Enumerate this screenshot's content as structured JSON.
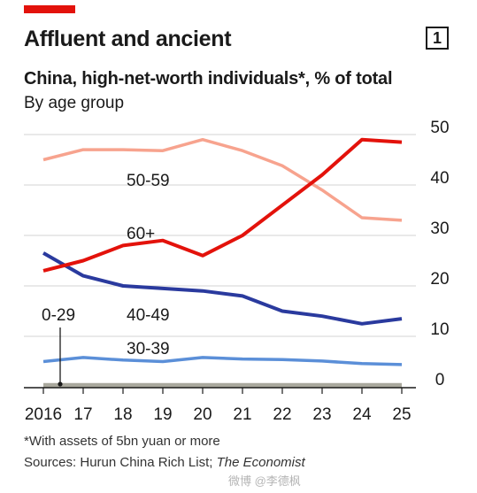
{
  "header": {
    "title": "Affluent and ancient",
    "chart_number": "1",
    "subtitle": "China, high-net-worth individuals*, % of total",
    "byline": "By age group"
  },
  "footnote": "*With assets of 5bn yuan or more",
  "sources": {
    "prefix": "Sources: Hurun China Rich List; ",
    "italic": "The Economist"
  },
  "watermark": "微博 @李德枫",
  "colors": {
    "accent_red": "#e3120b"
  },
  "chart_data": {
    "type": "line",
    "x": [
      2016,
      2017,
      2018,
      2019,
      2020,
      2021,
      2022,
      2023,
      2024,
      2025
    ],
    "x_tick_labels": [
      "2016",
      "17",
      "18",
      "19",
      "20",
      "21",
      "22",
      "23",
      "24",
      "25"
    ],
    "ylim": [
      0,
      50
    ],
    "y_ticks": [
      0,
      10,
      20,
      30,
      40,
      50
    ],
    "y_tick_labels": [
      "0",
      "10",
      "20",
      "30",
      "40",
      "50"
    ],
    "y_axis_side": "right",
    "grid": "horizontal",
    "series": [
      {
        "name": "50-59",
        "color": "#f7a38e",
        "width": 3.5,
        "values": [
          45,
          47,
          47,
          46.8,
          49,
          46.8,
          43.8,
          39,
          33.5,
          33
        ]
      },
      {
        "name": "60+",
        "color": "#e3120b",
        "width": 4,
        "values": [
          23,
          25,
          28,
          29,
          26,
          30,
          36,
          42,
          49,
          48.5
        ]
      },
      {
        "name": "40-49",
        "color": "#2a3a9e",
        "width": 4,
        "values": [
          26.5,
          22,
          20,
          19.5,
          19,
          18,
          15,
          14,
          12.5,
          13.5
        ]
      },
      {
        "name": "30-39",
        "color": "#5b8fd8",
        "width": 3.5,
        "values": [
          5,
          5.8,
          5.3,
          5,
          5.8,
          5.5,
          5.4,
          5.1,
          4.6,
          4.4
        ]
      },
      {
        "name": "0-29",
        "color": "#a9a89d",
        "width": 5,
        "values": [
          0.3,
          0.3,
          0.3,
          0.3,
          0.3,
          0.3,
          0.3,
          0.3,
          0.3,
          0.3
        ]
      }
    ]
  }
}
